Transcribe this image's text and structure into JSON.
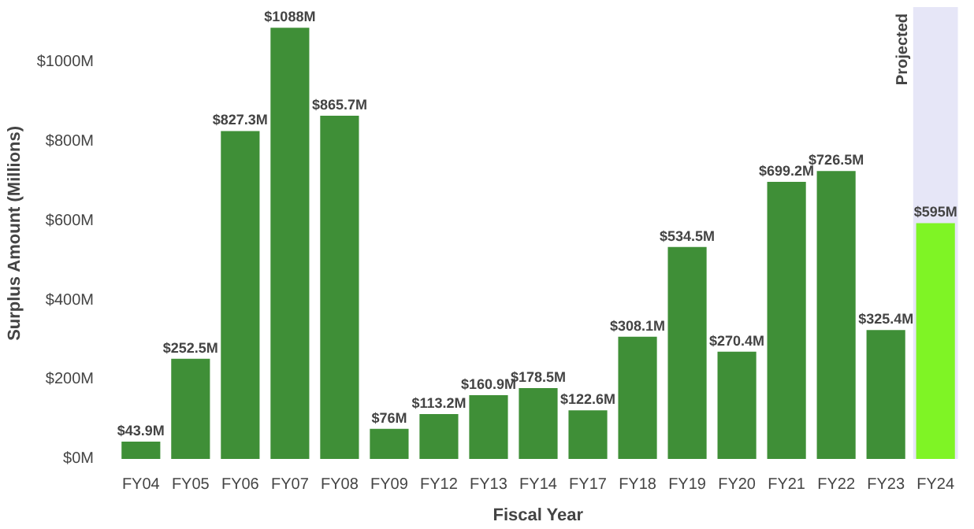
{
  "chart_data": {
    "type": "bar",
    "xlabel": "Fiscal Year",
    "ylabel": "Surplus Amount (Millions)",
    "categories": [
      "FY04",
      "FY05",
      "FY06",
      "FY07",
      "FY08",
      "FY09",
      "FY12",
      "FY13",
      "FY14",
      "FY17",
      "FY18",
      "FY19",
      "FY20",
      "FY21",
      "FY22",
      "FY23",
      "FY24"
    ],
    "values": [
      43.9,
      252.5,
      827.3,
      1088,
      865.7,
      76,
      113.2,
      160.9,
      178.5,
      122.6,
      308.1,
      534.5,
      270.4,
      699.2,
      726.5,
      325.4,
      595
    ],
    "colors": [
      "#3f8f37",
      "#3f8f37",
      "#3f8f37",
      "#3f8f37",
      "#3f8f37",
      "#3f8f37",
      "#3f8f37",
      "#3f8f37",
      "#3f8f37",
      "#3f8f37",
      "#3f8f37",
      "#3f8f37",
      "#3f8f37",
      "#3f8f37",
      "#3f8f37",
      "#3f8f37",
      "#7ff425"
    ],
    "value_labels": [
      "$43.9M",
      "$252.5M",
      "$827.3M",
      "$1088M",
      "$865.7M",
      "$76M",
      "$113.2M",
      "$160.9M",
      "$178.5M",
      "$122.6M",
      "$308.1M",
      "$534.5M",
      "$270.4M",
      "$699.2M",
      "$726.5M",
      "$325.4M",
      "$595M"
    ],
    "ylim": [
      0,
      1140
    ],
    "yticks": [
      {
        "value": 0,
        "label": "$0M"
      },
      {
        "value": 200,
        "label": "$200M"
      },
      {
        "value": 400,
        "label": "$400M"
      },
      {
        "value": 600,
        "label": "$600M"
      },
      {
        "value": 800,
        "label": "$800M"
      },
      {
        "value": 1000,
        "label": "$1000M"
      }
    ],
    "bands": [
      {
        "axis": "x",
        "from": "FY24",
        "to": "FY24",
        "label": "Projected",
        "color": "#e6e6f7"
      }
    ],
    "grid": false
  }
}
